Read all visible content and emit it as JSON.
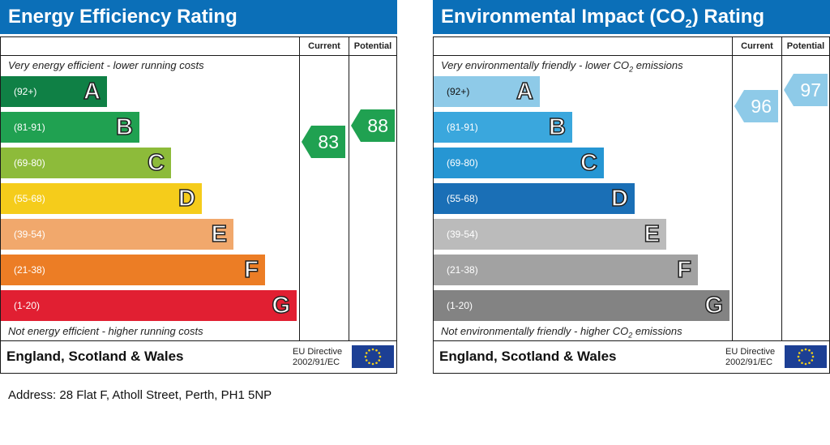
{
  "chart_data": [
    {
      "type": "bar",
      "title": "Energy Efficiency Rating",
      "columns": [
        "Current",
        "Potential"
      ],
      "top_note": "Very energy efficient - lower running costs",
      "bottom_note": "Not energy efficient - higher running costs",
      "bands": [
        {
          "range": "(92+)",
          "letter": "A",
          "color": "#0f8045"
        },
        {
          "range": "(81-91)",
          "letter": "B",
          "color": "#20a151"
        },
        {
          "range": "(69-80)",
          "letter": "C",
          "color": "#8dbb3a"
        },
        {
          "range": "(55-68)",
          "letter": "D",
          "color": "#f5cc1b"
        },
        {
          "range": "(39-54)",
          "letter": "E",
          "color": "#f1a86c"
        },
        {
          "range": "(21-38)",
          "letter": "F",
          "color": "#ec7d25"
        },
        {
          "range": "(1-20)",
          "letter": "G",
          "color": "#e11f32"
        }
      ],
      "current": {
        "value": 83,
        "band": "B",
        "color": "#20a151"
      },
      "potential": {
        "value": 88,
        "band": "B",
        "color": "#20a151"
      },
      "region": "England, Scotland & Wales",
      "directive_line1": "EU Directive",
      "directive_line2": "2002/91/EC"
    },
    {
      "type": "bar",
      "title_main": "Environmental Impact (CO",
      "title_sub": "2",
      "title_end": ") Rating",
      "columns": [
        "Current",
        "Potential"
      ],
      "top_note_main": "Very environmentally friendly - lower CO",
      "top_note_sub": "2",
      "top_note_end": " emissions",
      "bottom_note_main": "Not environmentally friendly - higher CO",
      "bottom_note_sub": "2",
      "bottom_note_end": " emissions",
      "bands": [
        {
          "range": "(92+)",
          "letter": "A",
          "color": "#8ecae8"
        },
        {
          "range": "(81-91)",
          "letter": "B",
          "color": "#3aa7dd"
        },
        {
          "range": "(69-80)",
          "letter": "C",
          "color": "#2696d3"
        },
        {
          "range": "(55-68)",
          "letter": "D",
          "color": "#1a6fb6"
        },
        {
          "range": "(39-54)",
          "letter": "E",
          "color": "#bbbbbb"
        },
        {
          "range": "(21-38)",
          "letter": "F",
          "color": "#a2a2a2"
        },
        {
          "range": "(1-20)",
          "letter": "G",
          "color": "#838383"
        }
      ],
      "current": {
        "value": 96,
        "band": "A",
        "color": "#8ecae8"
      },
      "potential": {
        "value": 97,
        "band": "A",
        "color": "#8ecae8"
      },
      "region": "England, Scotland & Wales",
      "directive_line1": "EU Directive",
      "directive_line2": "2002/91/EC"
    }
  ],
  "address": "Address: 28 Flat F, Atholl Street, Perth, PH1 5NP"
}
